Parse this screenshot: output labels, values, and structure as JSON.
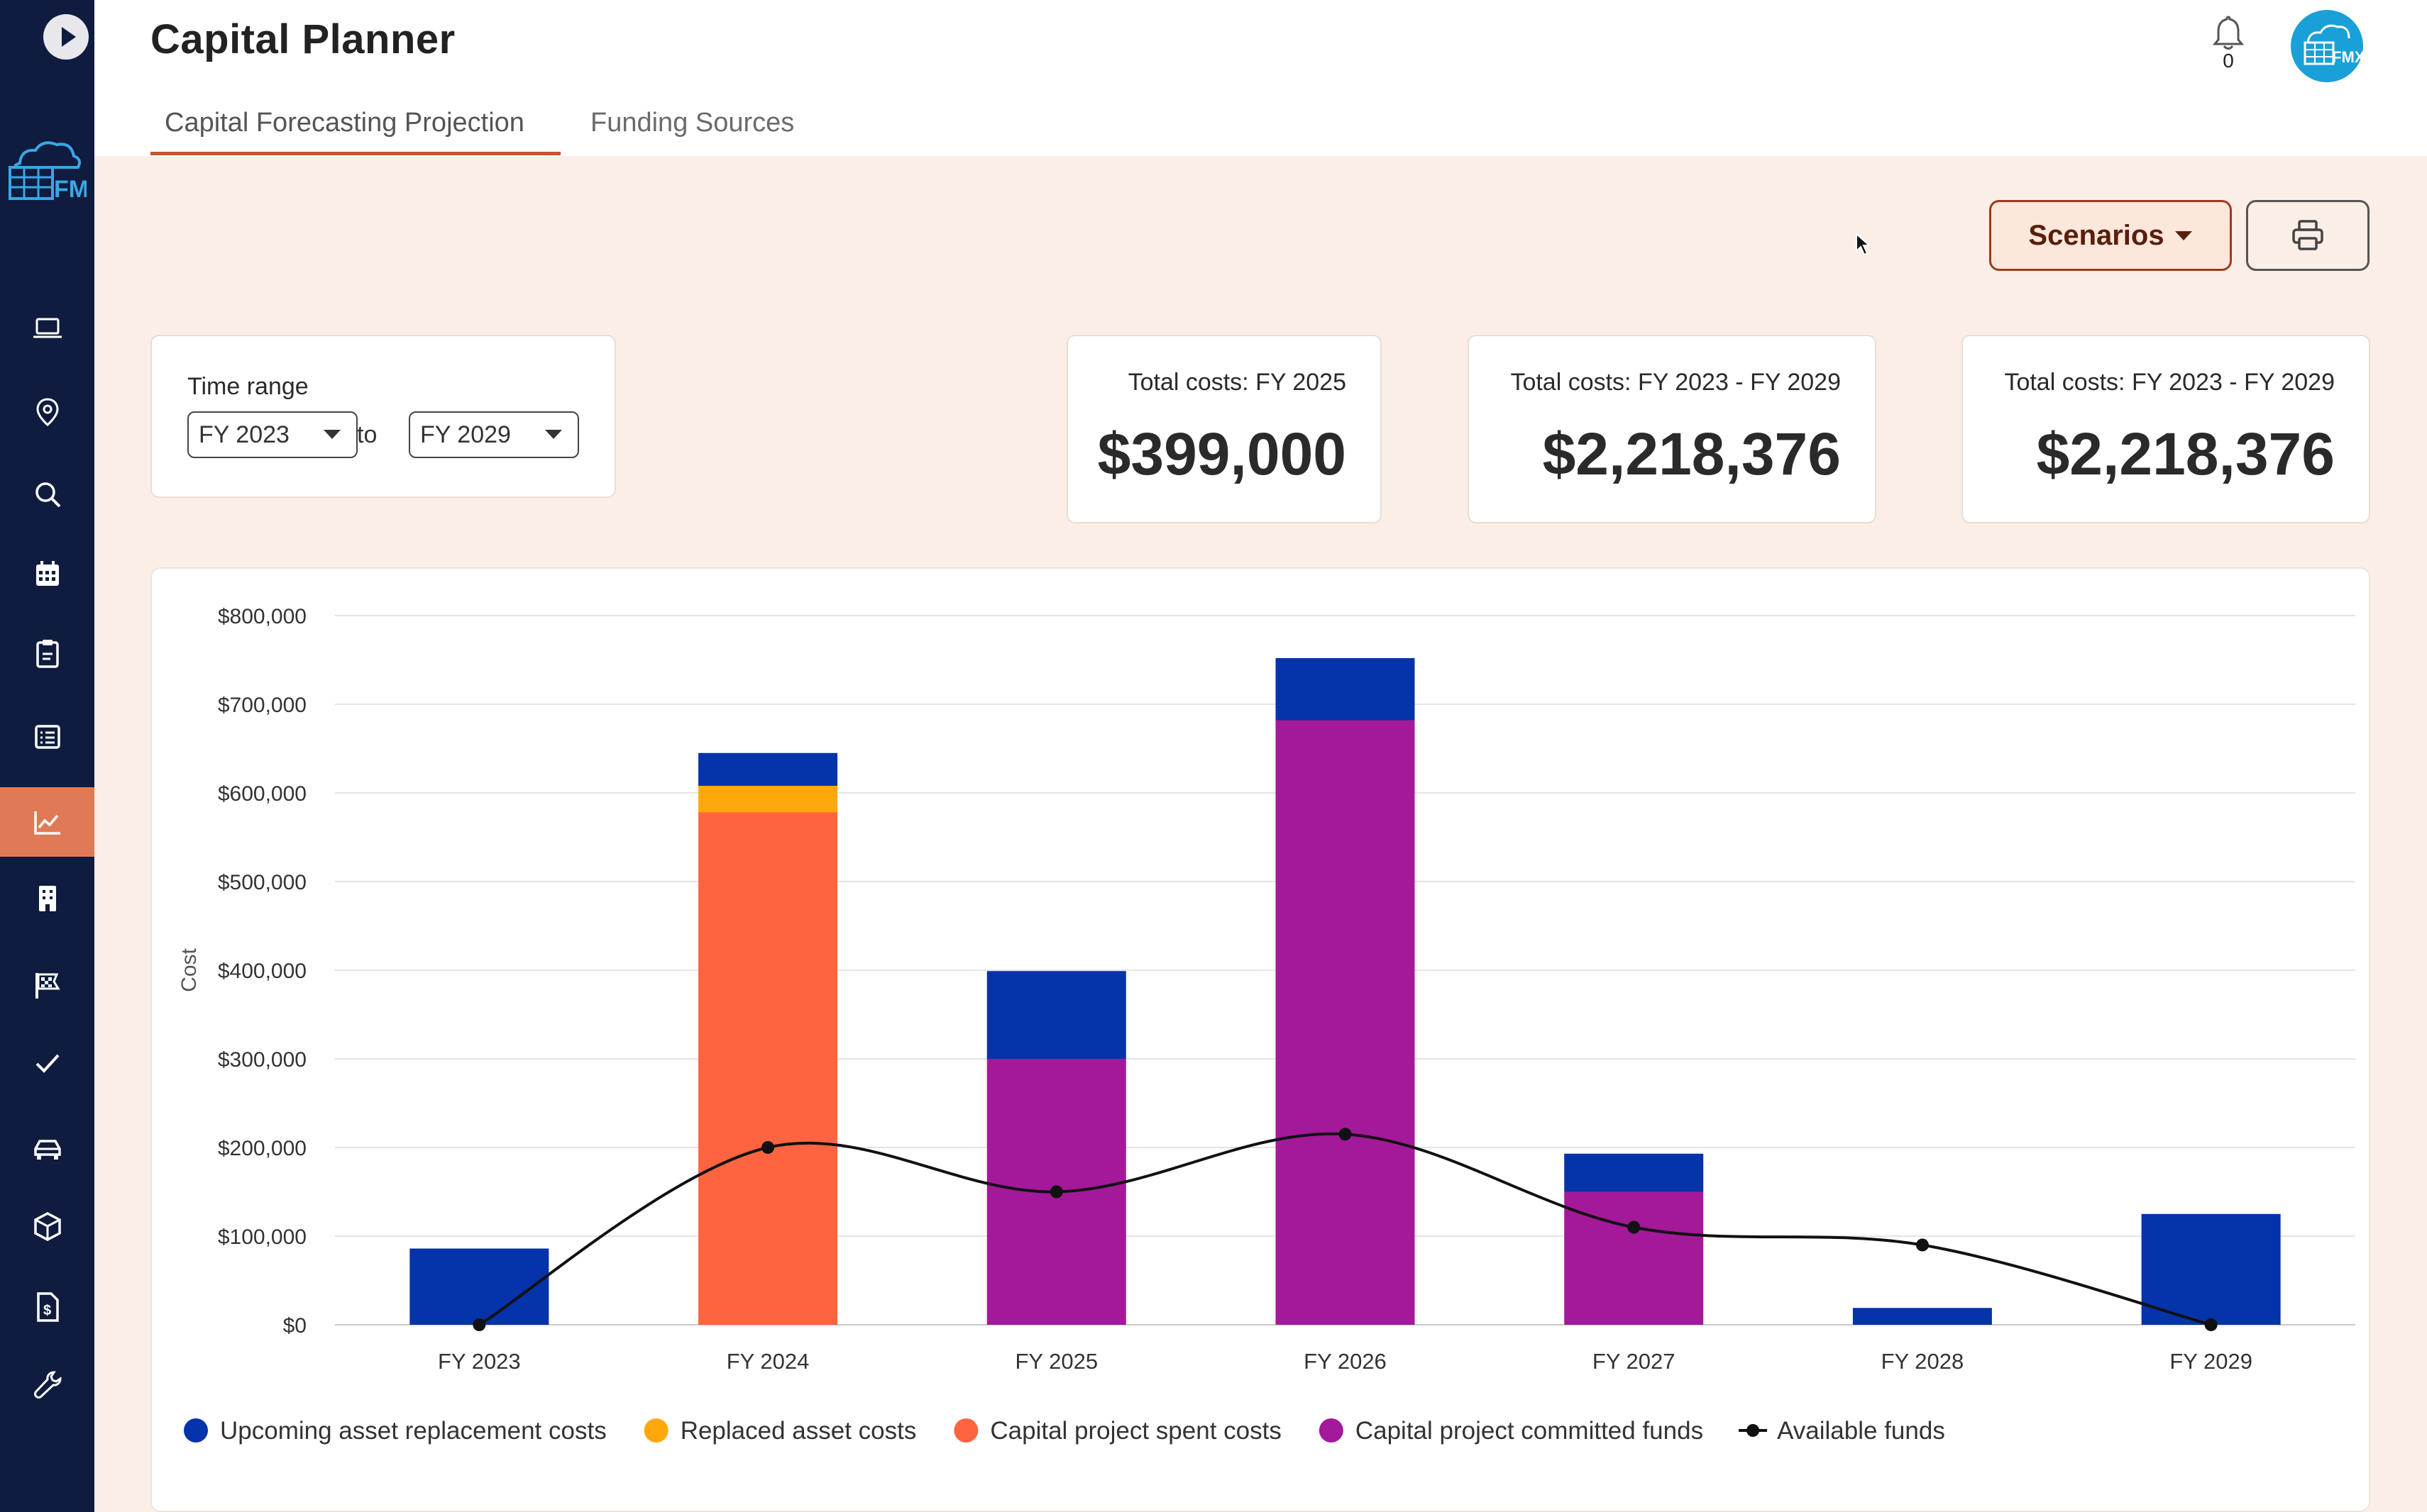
{
  "app": {
    "title": "Capital Planner"
  },
  "tabs": [
    {
      "label": "Capital Forecasting Projection",
      "active": true
    },
    {
      "label": "Funding Sources",
      "active": false
    }
  ],
  "notifications": {
    "count": "0"
  },
  "toolbar": {
    "scenarios_label": "Scenarios",
    "print_icon": "printer-icon"
  },
  "time_range": {
    "label": "Time range",
    "from": "FY 2023",
    "to_word": "to",
    "to": "FY 2029"
  },
  "kpis": [
    {
      "label": "Total costs: FY 2025",
      "value": "$399,000"
    },
    {
      "label": "Total costs: FY 2023 - FY 2029",
      "value": "$2,218,376"
    },
    {
      "label": "Total costs: FY 2023 - FY 2029",
      "value": "$2,218,376"
    }
  ],
  "sidebar": {
    "items": [
      {
        "icon": "laptop-icon"
      },
      {
        "icon": "location-pin-icon"
      },
      {
        "icon": "search-icon"
      },
      {
        "icon": "calendar-icon"
      },
      {
        "icon": "clipboard-icon"
      },
      {
        "icon": "list-icon"
      },
      {
        "icon": "chart-line-icon",
        "active": true
      },
      {
        "icon": "building-icon"
      },
      {
        "icon": "checkered-flag-icon"
      },
      {
        "icon": "check-icon"
      },
      {
        "icon": "car-icon"
      },
      {
        "icon": "box-icon"
      },
      {
        "icon": "dollar-document-icon"
      },
      {
        "icon": "wrench-icon"
      }
    ]
  },
  "colors": {
    "upcoming": "#0433aa",
    "replaced": "#ffa80c",
    "spent": "#ff6440",
    "committed": "#a4189a",
    "available": "#111111",
    "accent": "#c2562c"
  },
  "chart_data": {
    "type": "bar",
    "stacked": true,
    "categories": [
      "FY 2023",
      "FY 2024",
      "FY 2025",
      "FY 2026",
      "FY 2027",
      "FY 2028",
      "FY 2029"
    ],
    "ylabel": "Cost",
    "ylim": [
      0,
      800000
    ],
    "yticks": [
      0,
      100000,
      200000,
      300000,
      400000,
      500000,
      600000,
      700000,
      800000
    ],
    "ytick_labels": [
      "$0",
      "$100,000",
      "$200,000",
      "$300,000",
      "$400,000",
      "$500,000",
      "$600,000",
      "$700,000",
      "$800,000"
    ],
    "grid": true,
    "legend_position": "bottom-left",
    "series": [
      {
        "name": "Capital project spent costs",
        "color": "#ff6440",
        "values": [
          0,
          578000,
          0,
          0,
          0,
          0,
          0
        ]
      },
      {
        "name": "Capital project committed funds",
        "color": "#a4189a",
        "values": [
          0,
          0,
          300000,
          682000,
          150000,
          0,
          0
        ]
      },
      {
        "name": "Replaced asset costs",
        "color": "#ffa80c",
        "values": [
          0,
          30000,
          0,
          0,
          0,
          0,
          0
        ]
      },
      {
        "name": "Upcoming asset replacement costs",
        "color": "#0433aa",
        "values": [
          86000,
          37000,
          99000,
          70000,
          43000,
          19000,
          125000
        ]
      }
    ],
    "line": {
      "name": "Available funds",
      "color": "#111111",
      "values": [
        0,
        200000,
        150000,
        215000,
        110000,
        90000,
        0
      ]
    },
    "legend": [
      {
        "name": "Upcoming asset replacement costs",
        "color": "#0433aa",
        "kind": "dot"
      },
      {
        "name": "Replaced asset costs",
        "color": "#ffa80c",
        "kind": "dot"
      },
      {
        "name": "Capital project spent costs",
        "color": "#ff6440",
        "kind": "dot"
      },
      {
        "name": "Capital project committed funds",
        "color": "#a4189a",
        "kind": "dot"
      },
      {
        "name": "Available funds",
        "color": "#111111",
        "kind": "line"
      }
    ]
  }
}
